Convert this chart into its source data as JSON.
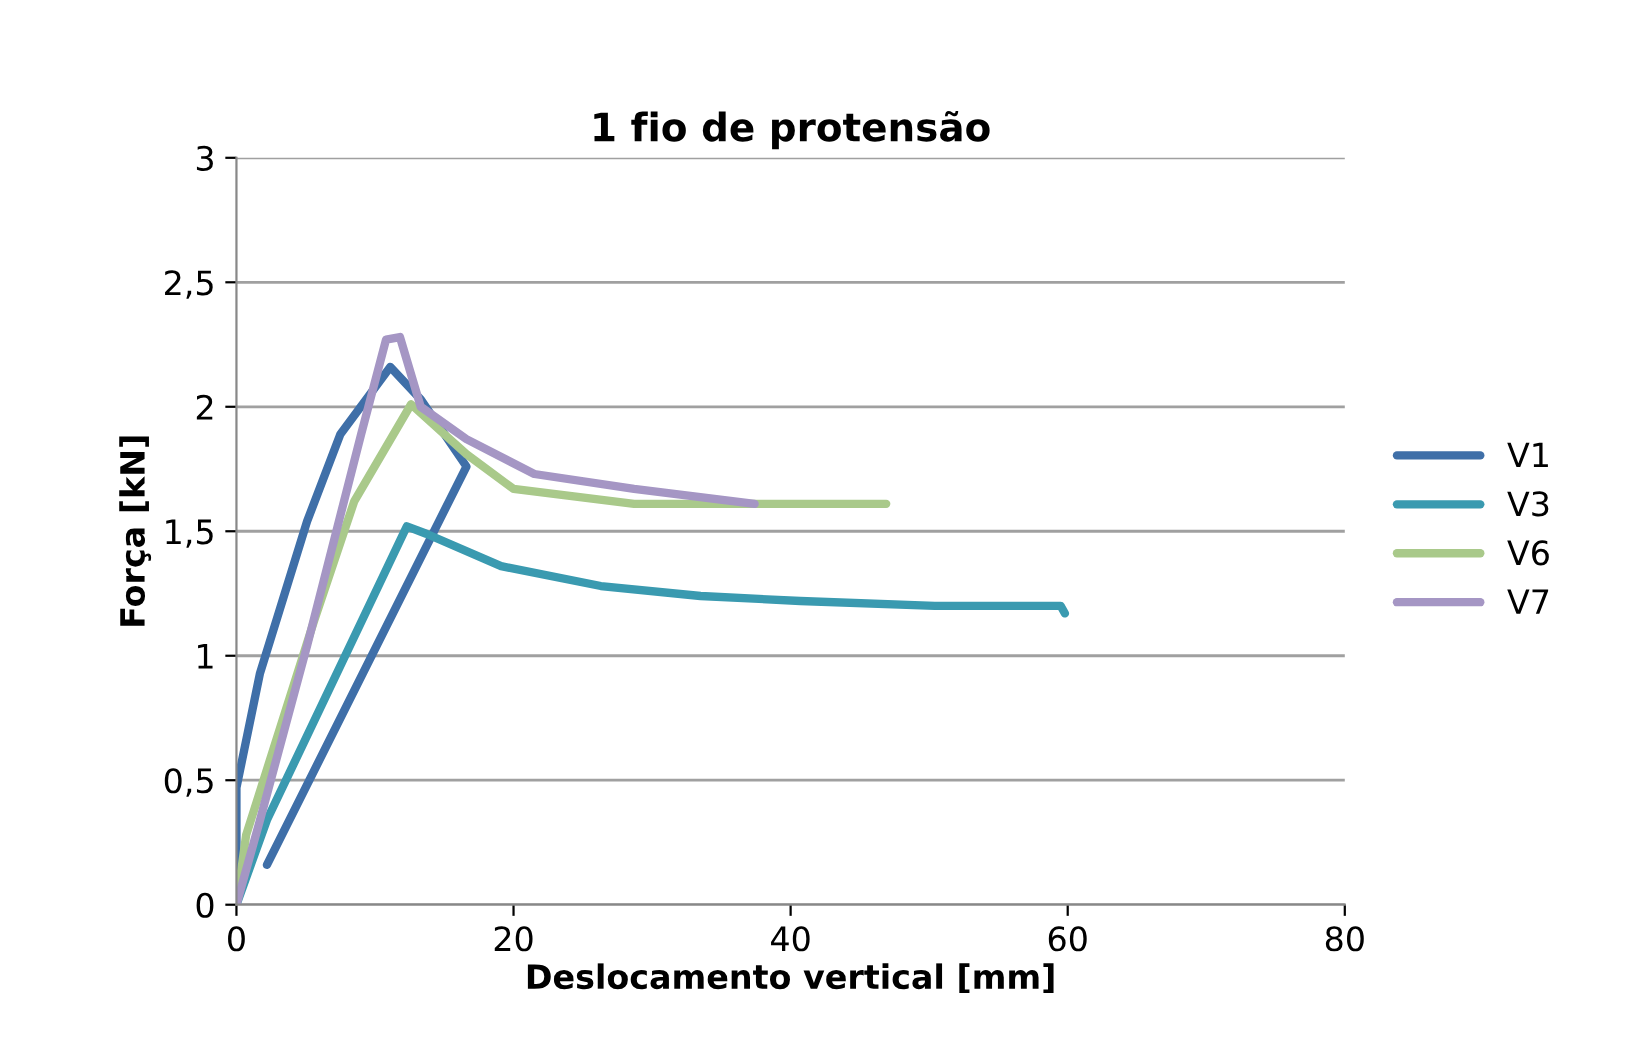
{
  "chart_data": {
    "type": "line",
    "title": "1 fio de protensão",
    "xlabel": "Deslocamento vertical [mm]",
    "ylabel": "Força [kN]",
    "xlim": [
      0,
      80
    ],
    "xticks": [
      0,
      20,
      40,
      60,
      80
    ],
    "ylim": [
      0,
      3
    ],
    "yticks": [
      0,
      {
        "value": 0.5,
        "label": "0,5"
      },
      1,
      {
        "value": 1.5,
        "label": "1,5"
      },
      2,
      {
        "value": 2.5,
        "label": "2,5"
      },
      3
    ],
    "grid": "y",
    "legend": "right",
    "marker": "none",
    "line_style": "solid",
    "series": [
      {
        "name": "V1",
        "color": "#3f6fa8",
        "x": [
          0,
          0,
          1.7,
          5.1,
          7.5,
          11.1,
          13.3,
          16.6,
          2.2
        ],
        "values": [
          0,
          0.47,
          0.93,
          1.54,
          1.89,
          2.16,
          2.03,
          1.76,
          0.16
        ]
      },
      {
        "name": "V3",
        "color": "#3a9ab0",
        "x": [
          0,
          2.2,
          12.3,
          13.7,
          19.1,
          26.3,
          33.5,
          40.7,
          50.4,
          59.5,
          59.8
        ],
        "values": [
          0,
          0.34,
          1.52,
          1.49,
          1.36,
          1.28,
          1.24,
          1.22,
          1.2,
          1.2,
          1.17
        ]
      },
      {
        "name": "V6",
        "color": "#a9c98a",
        "x": [
          0,
          0.7,
          5.6,
          8.5,
          12.6,
          12.8,
          16.6,
          20,
          28.7,
          46.9
        ],
        "values": [
          0,
          0.28,
          1.14,
          1.62,
          2.01,
          2.0,
          1.81,
          1.67,
          1.61,
          1.61
        ]
      },
      {
        "name": "V7",
        "color": "#a596c4",
        "x": [
          0,
          1.7,
          5.1,
          9,
          10.8,
          11.8,
          13.3,
          16.6,
          21.5,
          28.7,
          37.4
        ],
        "values": [
          0,
          0.34,
          1.04,
          1.89,
          2.27,
          2.28,
          2.0,
          1.87,
          1.73,
          1.67,
          1.61
        ]
      }
    ]
  }
}
